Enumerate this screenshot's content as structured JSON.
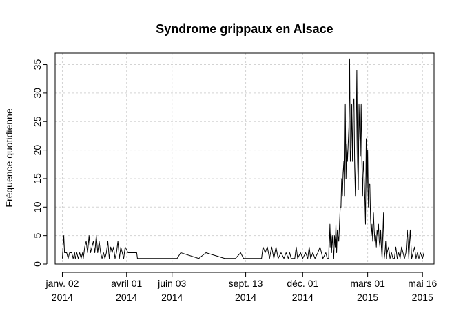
{
  "chart_data": {
    "type": "line",
    "title": "Syndrome grippaux en Alsace",
    "xlabel": "",
    "ylabel": "Fréquence quotidienne",
    "grid": true,
    "ylim": [
      0,
      37
    ],
    "xlim": [
      "2013-12-23",
      "2015-06-01"
    ],
    "y_ticks": [
      0,
      5,
      10,
      15,
      20,
      25,
      30,
      35
    ],
    "x_ticks": [
      {
        "date": "2014-01-02",
        "line1": "janv. 02",
        "line2": "2014"
      },
      {
        "date": "2014-04-01",
        "line1": "avril 01",
        "line2": "2014"
      },
      {
        "date": "2014-06-03",
        "line1": "juin 03",
        "line2": "2014"
      },
      {
        "date": "2014-09-13",
        "line1": "sept. 13",
        "line2": "2014"
      },
      {
        "date": "2014-12-01",
        "line1": "déc. 01",
        "line2": "2014"
      },
      {
        "date": "2015-03-01",
        "line1": "mars 01",
        "line2": "2015"
      },
      {
        "date": "2015-05-16",
        "line1": "mai 16",
        "line2": "2015"
      }
    ],
    "series": [
      {
        "name": "",
        "color": "#000000",
        "points": [
          [
            "2014-01-02",
            1
          ],
          [
            "2014-01-04",
            5
          ],
          [
            "2014-01-05",
            2
          ],
          [
            "2014-01-08",
            2
          ],
          [
            "2014-01-10",
            1
          ],
          [
            "2014-01-12",
            2
          ],
          [
            "2014-01-15",
            2
          ],
          [
            "2014-01-17",
            1
          ],
          [
            "2014-01-19",
            2
          ],
          [
            "2014-01-20",
            1
          ],
          [
            "2014-01-22",
            2
          ],
          [
            "2014-01-24",
            1
          ],
          [
            "2014-01-26",
            2
          ],
          [
            "2014-01-28",
            1
          ],
          [
            "2014-01-30",
            2
          ],
          [
            "2014-01-31",
            1
          ],
          [
            "2014-02-02",
            3
          ],
          [
            "2014-02-04",
            4
          ],
          [
            "2014-02-06",
            2
          ],
          [
            "2014-02-08",
            5
          ],
          [
            "2014-02-10",
            2
          ],
          [
            "2014-02-12",
            3
          ],
          [
            "2014-02-14",
            4
          ],
          [
            "2014-02-16",
            2
          ],
          [
            "2014-02-18",
            5
          ],
          [
            "2014-02-20",
            2
          ],
          [
            "2014-02-22",
            4
          ],
          [
            "2014-02-24",
            2
          ],
          [
            "2014-02-26",
            1
          ],
          [
            "2014-02-28",
            2
          ],
          [
            "2014-03-02",
            1
          ],
          [
            "2014-03-04",
            2
          ],
          [
            "2014-03-06",
            4
          ],
          [
            "2014-03-08",
            1
          ],
          [
            "2014-03-10",
            3
          ],
          [
            "2014-03-12",
            2
          ],
          [
            "2014-03-14",
            3
          ],
          [
            "2014-03-16",
            1
          ],
          [
            "2014-03-18",
            2
          ],
          [
            "2014-03-20",
            4
          ],
          [
            "2014-03-22",
            1
          ],
          [
            "2014-03-24",
            3
          ],
          [
            "2014-03-26",
            2
          ],
          [
            "2014-03-28",
            1
          ],
          [
            "2014-03-30",
            3
          ],
          [
            "2014-04-03",
            2
          ],
          [
            "2014-04-15",
            2
          ],
          [
            "2014-04-16",
            1
          ],
          [
            "2014-05-30",
            1
          ],
          [
            "2014-06-10",
            1
          ],
          [
            "2014-06-15",
            2
          ],
          [
            "2014-07-10",
            1
          ],
          [
            "2014-07-20",
            2
          ],
          [
            "2014-08-15",
            1
          ],
          [
            "2014-08-30",
            1
          ],
          [
            "2014-09-06",
            2
          ],
          [
            "2014-09-10",
            1
          ],
          [
            "2014-10-05",
            1
          ],
          [
            "2014-10-07",
            3
          ],
          [
            "2014-10-10",
            2
          ],
          [
            "2014-10-13",
            3
          ],
          [
            "2014-10-16",
            1
          ],
          [
            "2014-10-19",
            3
          ],
          [
            "2014-10-22",
            1
          ],
          [
            "2014-10-25",
            3
          ],
          [
            "2014-10-28",
            1
          ],
          [
            "2014-11-01",
            2
          ],
          [
            "2014-11-05",
            1
          ],
          [
            "2014-11-08",
            2
          ],
          [
            "2014-11-11",
            1
          ],
          [
            "2014-11-13",
            2
          ],
          [
            "2014-11-15",
            1
          ],
          [
            "2014-11-20",
            1
          ],
          [
            "2014-11-22",
            3
          ],
          [
            "2014-11-24",
            1
          ],
          [
            "2014-11-28",
            2
          ],
          [
            "2014-12-01",
            1
          ],
          [
            "2014-12-05",
            2
          ],
          [
            "2014-12-08",
            1
          ],
          [
            "2014-12-10",
            3
          ],
          [
            "2014-12-12",
            1
          ],
          [
            "2014-12-15",
            2
          ],
          [
            "2014-12-18",
            1
          ],
          [
            "2014-12-22",
            2
          ],
          [
            "2014-12-25",
            3
          ],
          [
            "2014-12-27",
            2
          ],
          [
            "2014-12-29",
            1
          ],
          [
            "2015-01-02",
            2
          ],
          [
            "2015-01-04",
            1
          ],
          [
            "2015-01-06",
            1
          ],
          [
            "2015-01-07",
            7
          ],
          [
            "2015-01-08",
            3
          ],
          [
            "2015-01-09",
            7
          ],
          [
            "2015-01-10",
            2
          ],
          [
            "2015-01-11",
            5
          ],
          [
            "2015-01-12",
            3
          ],
          [
            "2015-01-13",
            1
          ],
          [
            "2015-01-14",
            5
          ],
          [
            "2015-01-15",
            3
          ],
          [
            "2015-01-16",
            7
          ],
          [
            "2015-01-17",
            2
          ],
          [
            "2015-01-18",
            6
          ],
          [
            "2015-01-19",
            5
          ],
          [
            "2015-01-20",
            4
          ],
          [
            "2015-01-21",
            7
          ],
          [
            "2015-01-22",
            10
          ],
          [
            "2015-01-23",
            10
          ],
          [
            "2015-01-24",
            15
          ],
          [
            "2015-01-25",
            12
          ],
          [
            "2015-01-26",
            16
          ],
          [
            "2015-01-27",
            18
          ],
          [
            "2015-01-28",
            12
          ],
          [
            "2015-01-29",
            28
          ],
          [
            "2015-01-30",
            15
          ],
          [
            "2015-01-31",
            21
          ],
          [
            "2015-02-01",
            18
          ],
          [
            "2015-02-02",
            21
          ],
          [
            "2015-02-03",
            24
          ],
          [
            "2015-02-04",
            36
          ],
          [
            "2015-02-05",
            18
          ],
          [
            "2015-02-06",
            20
          ],
          [
            "2015-02-07",
            28
          ],
          [
            "2015-02-08",
            18
          ],
          [
            "2015-02-09",
            28
          ],
          [
            "2015-02-10",
            29
          ],
          [
            "2015-02-11",
            17
          ],
          [
            "2015-02-12",
            12
          ],
          [
            "2015-02-13",
            22
          ],
          [
            "2015-02-14",
            34
          ],
          [
            "2015-02-15",
            18
          ],
          [
            "2015-02-16",
            13
          ],
          [
            "2015-02-17",
            28
          ],
          [
            "2015-02-18",
            23
          ],
          [
            "2015-02-19",
            19
          ],
          [
            "2015-02-20",
            28
          ],
          [
            "2015-02-21",
            18
          ],
          [
            "2015-02-22",
            12
          ],
          [
            "2015-02-23",
            18
          ],
          [
            "2015-02-24",
            16
          ],
          [
            "2015-02-25",
            12
          ],
          [
            "2015-02-26",
            7
          ],
          [
            "2015-02-27",
            22
          ],
          [
            "2015-02-28",
            11
          ],
          [
            "2015-03-01",
            20
          ],
          [
            "2015-03-02",
            10
          ],
          [
            "2015-03-03",
            14
          ],
          [
            "2015-03-04",
            14
          ],
          [
            "2015-03-05",
            8
          ],
          [
            "2015-03-06",
            5
          ],
          [
            "2015-03-07",
            7
          ],
          [
            "2015-03-08",
            4
          ],
          [
            "2015-03-09",
            9
          ],
          [
            "2015-03-10",
            6
          ],
          [
            "2015-03-11",
            4
          ],
          [
            "2015-03-12",
            5
          ],
          [
            "2015-03-13",
            3
          ],
          [
            "2015-03-14",
            6
          ],
          [
            "2015-03-15",
            5
          ],
          [
            "2015-03-16",
            7
          ],
          [
            "2015-03-17",
            4
          ],
          [
            "2015-03-18",
            3
          ],
          [
            "2015-03-19",
            6
          ],
          [
            "2015-03-20",
            3
          ],
          [
            "2015-03-21",
            1
          ],
          [
            "2015-03-22",
            5
          ],
          [
            "2015-03-23",
            9
          ],
          [
            "2015-03-24",
            1
          ],
          [
            "2015-03-25",
            2
          ],
          [
            "2015-03-26",
            4
          ],
          [
            "2015-03-27",
            1
          ],
          [
            "2015-03-28",
            2
          ],
          [
            "2015-03-30",
            3
          ],
          [
            "2015-04-01",
            1
          ],
          [
            "2015-04-03",
            2
          ],
          [
            "2015-04-05",
            1
          ],
          [
            "2015-04-07",
            1
          ],
          [
            "2015-04-09",
            3
          ],
          [
            "2015-04-11",
            1
          ],
          [
            "2015-04-13",
            2
          ],
          [
            "2015-04-15",
            1
          ],
          [
            "2015-04-17",
            3
          ],
          [
            "2015-04-19",
            2
          ],
          [
            "2015-04-21",
            1
          ],
          [
            "2015-04-23",
            2
          ],
          [
            "2015-04-25",
            6
          ],
          [
            "2015-04-27",
            1
          ],
          [
            "2015-04-29",
            6
          ],
          [
            "2015-05-01",
            1
          ],
          [
            "2015-05-03",
            2
          ],
          [
            "2015-05-05",
            3
          ],
          [
            "2015-05-07",
            1
          ],
          [
            "2015-05-09",
            2
          ],
          [
            "2015-05-11",
            1
          ],
          [
            "2015-05-13",
            2
          ],
          [
            "2015-05-16",
            1
          ],
          [
            "2015-05-18",
            2
          ]
        ]
      }
    ]
  }
}
